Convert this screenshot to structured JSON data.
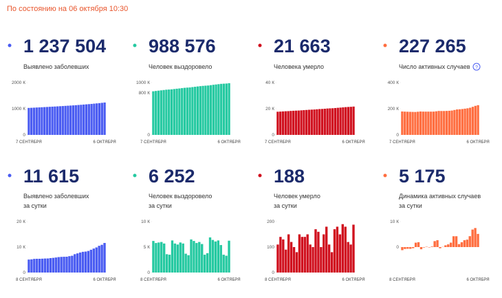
{
  "header": "По состоянию на 06 октября 10:30",
  "chart_data": [
    {
      "type": "bar",
      "title": "1 237 504",
      "subtitle": [
        "Выявлено заболевших"
      ],
      "color": "#4a5cf2",
      "categories": [
        "7 СЕНТЯБРЯ",
        null,
        null,
        null,
        null,
        null,
        null,
        null,
        null,
        null,
        null,
        null,
        null,
        null,
        null,
        null,
        null,
        null,
        null,
        null,
        null,
        null,
        null,
        null,
        null,
        null,
        null,
        null,
        null,
        "6 ОКТЯБРЯ"
      ],
      "values": [
        1031000,
        1036000,
        1041000,
        1047000,
        1052000,
        1057000,
        1063000,
        1068000,
        1074000,
        1080000,
        1085000,
        1091000,
        1097000,
        1103000,
        1110000,
        1116000,
        1122000,
        1129000,
        1136000,
        1144000,
        1151000,
        1160000,
        1168000,
        1176000,
        1185000,
        1195000,
        1205000,
        1215000,
        1226000,
        1238000
      ],
      "ylim": [
        0,
        2000000
      ],
      "yticks": [
        0,
        {
          "value": 1000000,
          "label": "1000 К"
        },
        {
          "value": 2000000,
          "label": "2000 К"
        }
      ]
    },
    {
      "type": "bar",
      "title": "988 576",
      "subtitle": [
        "Человек выздоровело"
      ],
      "color": "#25c9a1",
      "categories": [
        "7 СЕНТЯБРЯ",
        null,
        null,
        null,
        null,
        null,
        null,
        null,
        null,
        null,
        null,
        null,
        null,
        null,
        null,
        null,
        null,
        null,
        null,
        null,
        null,
        null,
        null,
        null,
        null,
        null,
        null,
        null,
        null,
        "6 ОКТЯБРЯ"
      ],
      "values": [
        834000,
        840000,
        846000,
        852000,
        858000,
        864000,
        867000,
        871000,
        877000,
        883000,
        888000,
        894000,
        900000,
        904000,
        907000,
        914000,
        920000,
        926000,
        932000,
        937000,
        941000,
        944000,
        951000,
        958000,
        964000,
        970000,
        976000,
        979000,
        982000,
        989000
      ],
      "ylim": [
        0,
        1000000
      ],
      "yticks": [
        0,
        {
          "value": 800000,
          "label": "800 К"
        },
        {
          "value": 1000000,
          "label": "1000 К"
        }
      ]
    },
    {
      "type": "bar",
      "title": "21 663",
      "subtitle": [
        "Человека умерло"
      ],
      "color": "#d0101e",
      "categories": [
        "7 СЕНТЯБРЯ",
        null,
        null,
        null,
        null,
        null,
        null,
        null,
        null,
        null,
        null,
        null,
        null,
        null,
        null,
        null,
        null,
        null,
        null,
        null,
        null,
        null,
        null,
        null,
        null,
        null,
        null,
        null,
        null,
        "6 ОКТЯБРЯ"
      ],
      "values": [
        17715,
        17825,
        17965,
        18095,
        18185,
        18335,
        18455,
        18555,
        18635,
        18785,
        18925,
        19065,
        19215,
        19325,
        19425,
        19595,
        19755,
        19855,
        20005,
        20185,
        20295,
        20375,
        20545,
        20725,
        20875,
        21065,
        21245,
        21365,
        21475,
        21663
      ],
      "ylim": [
        0,
        40000
      ],
      "yticks": [
        0,
        {
          "value": 20000,
          "label": "20 К"
        },
        {
          "value": 40000,
          "label": "40 К"
        }
      ]
    },
    {
      "type": "bar",
      "title": "227 265",
      "subtitle": [
        "Число активных случаев"
      ],
      "color": "#ff6e40",
      "categories": [
        "7 СЕНТЯБРЯ",
        null,
        null,
        null,
        null,
        null,
        null,
        null,
        null,
        null,
        null,
        null,
        null,
        null,
        null,
        null,
        null,
        null,
        null,
        null,
        null,
        null,
        null,
        null,
        null,
        null,
        null,
        null,
        null,
        "6 ОКТЯБРЯ"
      ],
      "values": [
        179065,
        177854,
        177099,
        176432,
        175747,
        175303,
        177032,
        178941,
        178090,
        177910,
        178032,
        177897,
        178112,
        180450,
        183146,
        182691,
        182762,
        183457,
        184519,
        186262,
        190519,
        194774,
        195936,
        197837,
        200532,
        203454,
        207733,
        214612,
        222090,
        227265
      ],
      "ylim": [
        0,
        400000
      ],
      "yticks": [
        0,
        {
          "value": 200000,
          "label": "200 К"
        },
        {
          "value": 400000,
          "label": "400 К"
        }
      ]
    },
    {
      "type": "bar",
      "title": "11 615",
      "subtitle": [
        "Выявлено заболевших",
        "за сутки"
      ],
      "color": "#4a5cf2",
      "categories": [
        "8 СЕНТЯБРЯ",
        null,
        null,
        null,
        null,
        null,
        null,
        null,
        null,
        null,
        null,
        null,
        null,
        null,
        null,
        null,
        null,
        null,
        null,
        null,
        null,
        null,
        null,
        null,
        null,
        null,
        null,
        null,
        "6 ОКТЯБРЯ"
      ],
      "values": [
        5099,
        5185,
        5363,
        5405,
        5406,
        5449,
        5509,
        5529,
        5670,
        5762,
        5905,
        6065,
        6148,
        6196,
        6215,
        6431,
        6595,
        7212,
        7523,
        7867,
        8135,
        8232,
        8481,
        8945,
        9412,
        9859,
        10499,
        10888,
        11615
      ],
      "ylim": [
        0,
        20000
      ],
      "yticks": [
        0,
        {
          "value": 10000,
          "label": "10 К"
        },
        {
          "value": 20000,
          "label": "20 К"
        }
      ]
    },
    {
      "type": "bar",
      "title": "6 252",
      "subtitle": [
        "Человек выздоровело",
        "за сутки"
      ],
      "color": "#25c9a1",
      "categories": [
        "8 СЕНТЯБРЯ",
        null,
        null,
        null,
        null,
        null,
        null,
        null,
        null,
        null,
        null,
        null,
        null,
        null,
        null,
        null,
        null,
        null,
        null,
        null,
        null,
        null,
        null,
        null,
        null,
        null,
        null,
        null,
        "6 ОКТЯБРЯ"
      ],
      "values": [
        6200,
        5800,
        5900,
        6000,
        5700,
        3600,
        3500,
        6300,
        5700,
        5500,
        5900,
        5700,
        3700,
        3400,
        6500,
        6200,
        5800,
        6000,
        5600,
        3500,
        3800,
        6900,
        6400,
        6100,
        6300,
        5400,
        3500,
        3300,
        6252
      ],
      "ylim": [
        0,
        10000
      ],
      "yticks": [
        0,
        {
          "value": 5000,
          "label": "5 К"
        },
        {
          "value": 10000,
          "label": "10 К"
        }
      ]
    },
    {
      "type": "bar",
      "title": "188",
      "subtitle": [
        "Человек умерло",
        "за сутки"
      ],
      "color": "#d0101e",
      "categories": [
        "8 СЕНТЯБРЯ",
        null,
        null,
        null,
        null,
        null,
        null,
        null,
        null,
        null,
        null,
        null,
        null,
        null,
        null,
        null,
        null,
        null,
        null,
        null,
        null,
        null,
        null,
        null,
        null,
        null,
        null,
        null,
        "6 ОКТЯБРЯ"
      ],
      "values": [
        110,
        140,
        130,
        90,
        150,
        120,
        100,
        80,
        150,
        140,
        140,
        150,
        110,
        100,
        170,
        160,
        100,
        150,
        180,
        110,
        80,
        170,
        180,
        150,
        190,
        180,
        120,
        110,
        188
      ],
      "ylim": [
        0,
        200
      ],
      "yticks": [
        0,
        100,
        200
      ]
    },
    {
      "type": "bar",
      "title": "5 175",
      "subtitle": [
        "Динамика активных случаев",
        "за сутки"
      ],
      "color": "#ff6e40",
      "categories": [
        "8 СЕНТЯБРЯ",
        null,
        null,
        null,
        null,
        null,
        null,
        null,
        null,
        null,
        null,
        null,
        null,
        null,
        null,
        null,
        null,
        null,
        null,
        null,
        null,
        null,
        null,
        null,
        null,
        null,
        null,
        null,
        "6 ОКТЯБРЯ"
      ],
      "values": [
        -1211,
        -755,
        -667,
        -685,
        -444,
        1729,
        1909,
        -851,
        -180,
        122,
        -135,
        215,
        2338,
        2696,
        -455,
        71,
        695,
        1062,
        1743,
        4257,
        4255,
        1162,
        1901,
        2695,
        2922,
        4279,
        6879,
        7478,
        5175
      ],
      "ylim": [
        -10000,
        10000
      ],
      "yticks": [
        0,
        {
          "value": 10000,
          "label": "10 К"
        }
      ]
    }
  ]
}
